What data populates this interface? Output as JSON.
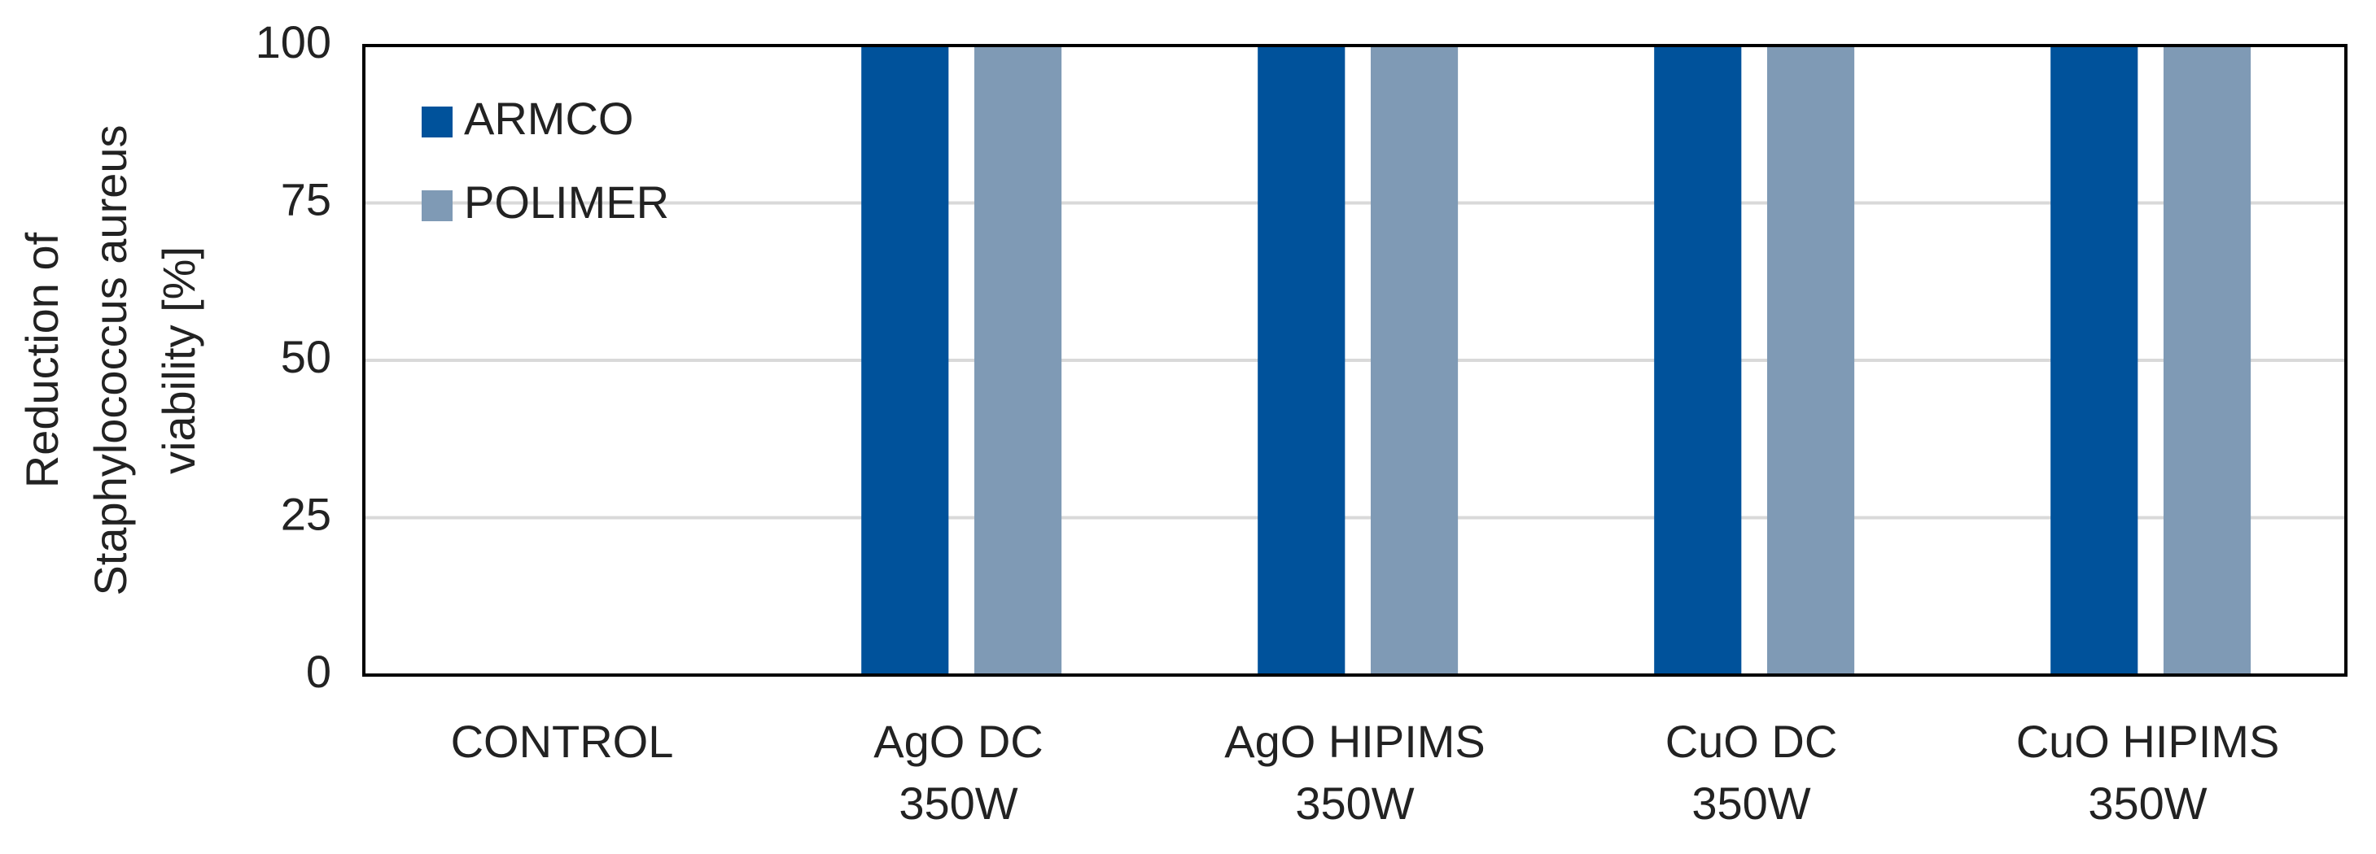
{
  "chart_data": {
    "type": "bar",
    "y_label": [
      "Reduction of",
      "Staphylococcus aureus",
      "viability [%]"
    ],
    "categories": [
      [
        "CONTROL"
      ],
      [
        "AgO DC",
        "350W"
      ],
      [
        "AgO HIPIMS",
        "350W"
      ],
      [
        "CuO DC",
        "350W"
      ],
      [
        "CuO HIPIMS",
        "350W"
      ]
    ],
    "series": [
      {
        "name": "ARMCO",
        "color": "#00529b",
        "values": [
          0,
          100,
          100,
          100,
          100
        ]
      },
      {
        "name": "POLIMER",
        "color": "#7f9ab5",
        "values": [
          0,
          100,
          100,
          100,
          100
        ]
      }
    ],
    "ylim": [
      0,
      100
    ],
    "yticks": [
      0,
      25,
      50,
      75,
      100
    ],
    "grid": true,
    "legend": "top-left"
  }
}
